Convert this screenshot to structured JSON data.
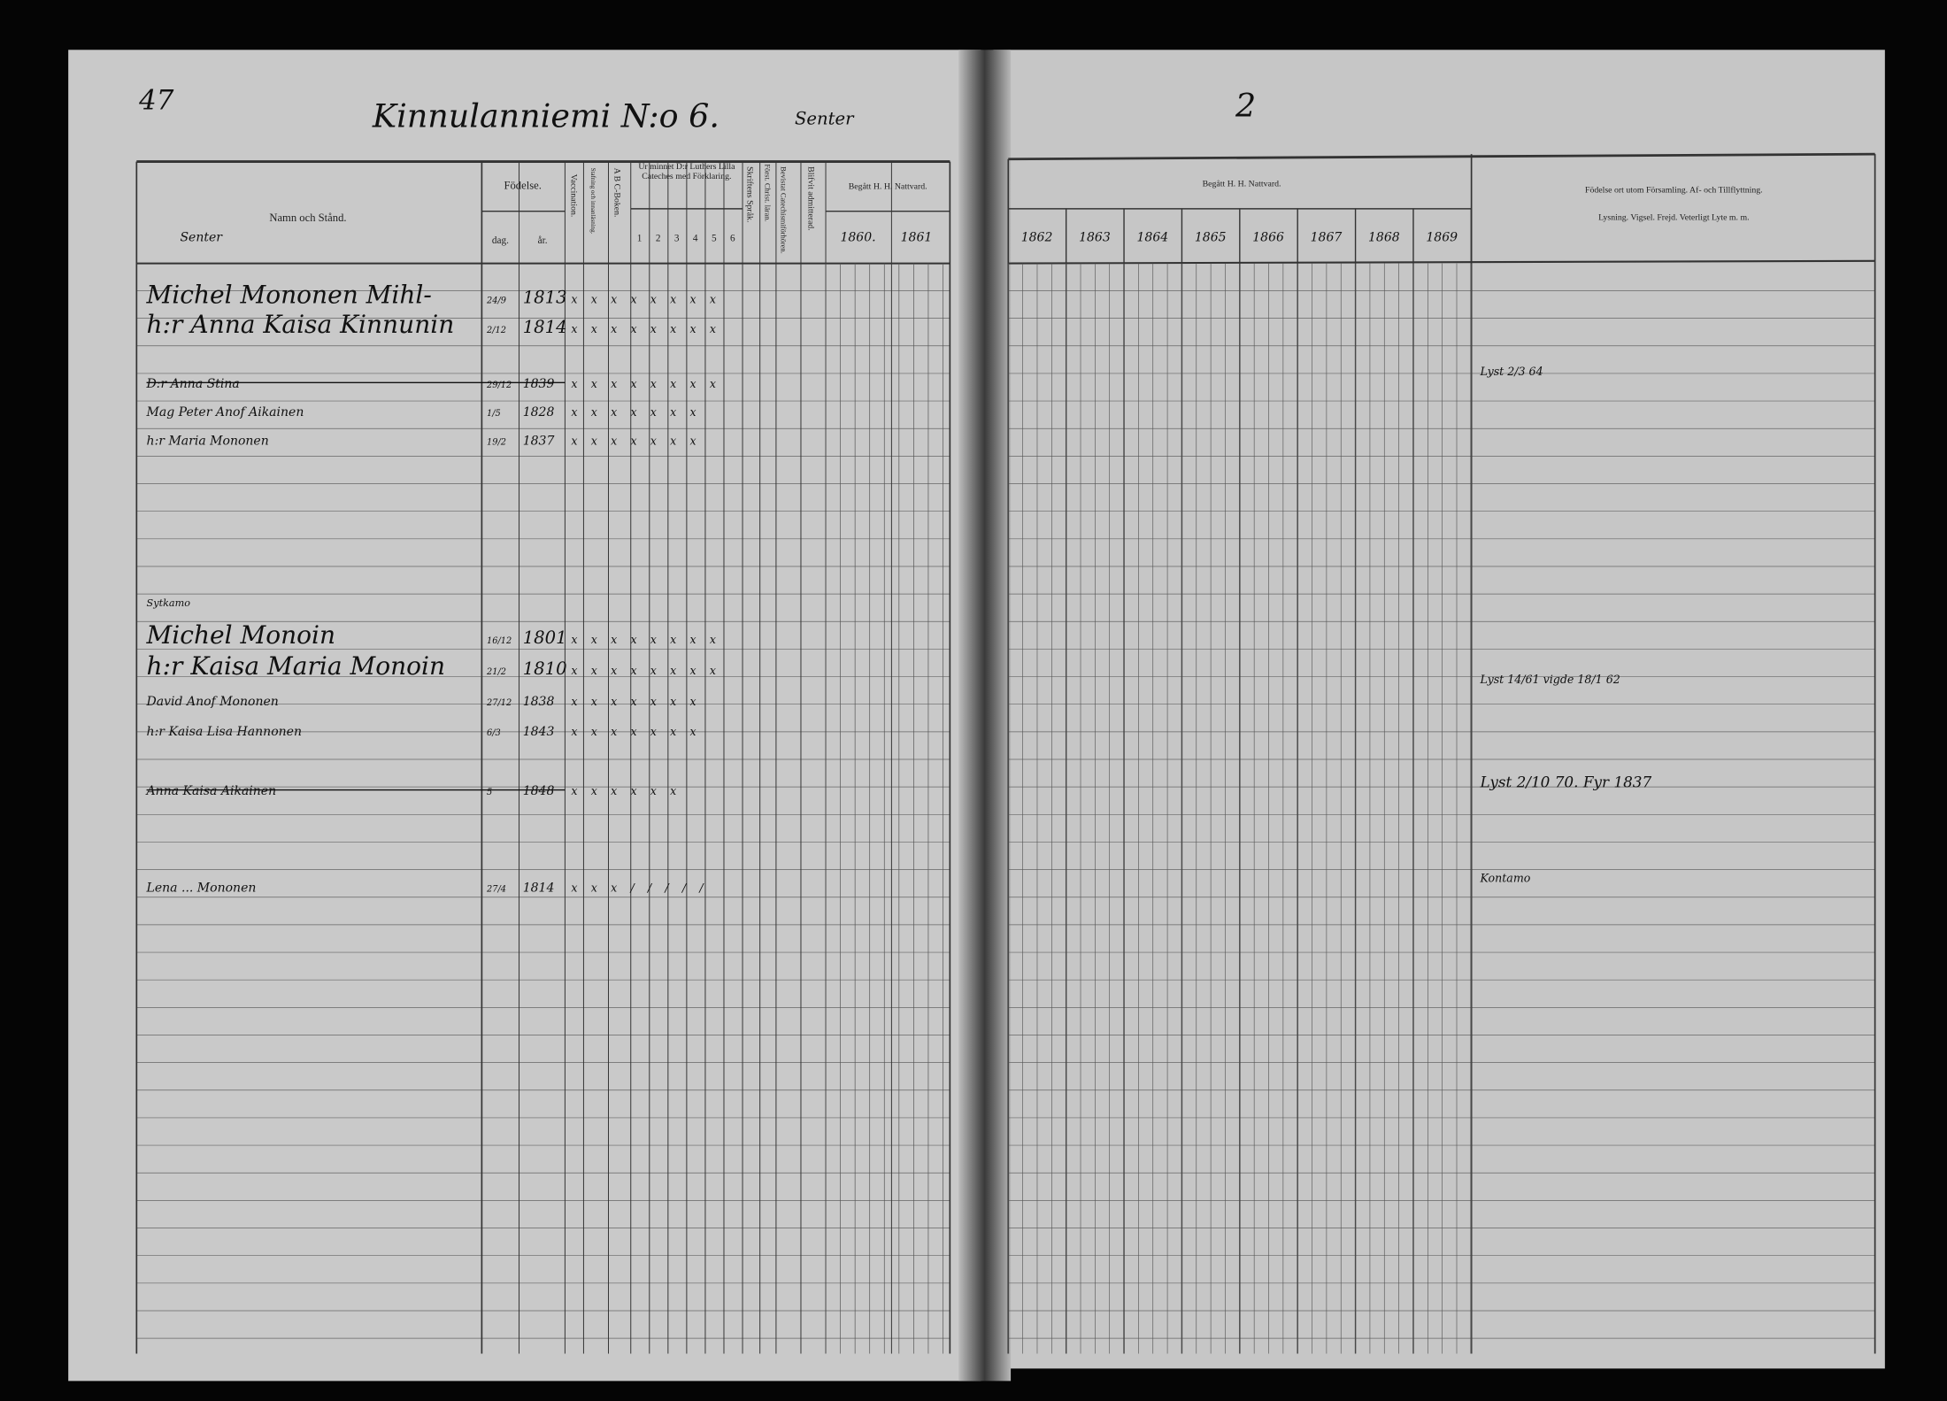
{
  "page_number": "47",
  "title": "Kinnulanniemi N:o 6.",
  "title_note": "Senter",
  "right_page_mark": "2",
  "headers": {
    "name": "Namn och Stånd.",
    "birth": "Födelse.",
    "birth_day": "dag.",
    "birth_year": "år.",
    "vaccination": "Vaccination.",
    "spelling": "Stafning och innanläsning.",
    "abc": "A B C-Boken.",
    "catechism": "Ur minnet D:r Luthers Lilla Cateches med Förklaring.",
    "catechism_cols": [
      "1",
      "2",
      "3",
      "4",
      "5",
      "6"
    ],
    "scripture": "Skriftens Språk.",
    "forst": "Först. Christ. läran.",
    "catechism_exams": "Bevistat Catechismiförhören.",
    "admitted": "Blifvit admitterad.",
    "communion": "Begått H. H. Nattvard.",
    "years_left": [
      "1860.",
      "1861"
    ],
    "years_right": [
      "1862",
      "1863",
      "1864",
      "1865",
      "1866",
      "1867",
      "1868",
      "1869"
    ],
    "remarks": "Födelse ort utom Församling. Af- och Tillflyttning.",
    "remarks2": "Lysning. Vigsel. Frejd. Veterligt Lyte m. m."
  },
  "section_label": "Senter",
  "section_label2": "Sytkamo",
  "rows": [
    {
      "name": "Michel Mononen Mihl-",
      "day": "24/9",
      "year": "1813",
      "marks": "x x x x x x x x"
    },
    {
      "name": "h:r Anna Kaisa Kinnunin",
      "day": "2/12",
      "year": "1814",
      "marks": "x x x x x x x x"
    },
    {
      "name": "D:r Anna Stina",
      "day": "29/12",
      "year": "1839",
      "marks": "x x x x x x x x"
    },
    {
      "name": "Mag Peter Anof Aikainen",
      "day": "1/5",
      "year": "1828",
      "marks": "x x x x x x x"
    },
    {
      "name": "h:r Maria Mononen",
      "day": "19/2",
      "year": "1837",
      "marks": "x x x x x x x"
    },
    {
      "name": "Michel Monoin",
      "day": "16/12",
      "year": "1801",
      "marks": "x x x x x x x x"
    },
    {
      "name": "h:r Kaisa Maria Monoin",
      "day": "21/2",
      "year": "1810",
      "marks": "x x x x x x x x"
    },
    {
      "name": "David Anof Mononen",
      "day": "27/12",
      "year": "1838",
      "marks": "x x x x x x x"
    },
    {
      "name": "h:r Kaisa Lisa Hannonen",
      "day": "6/3",
      "year": "1843",
      "marks": "x x x x x x x"
    },
    {
      "name": "Anna Kaisa Aikainen",
      "day": "5",
      "year": "1848",
      "marks": "x x x x x x"
    },
    {
      "name": "Lena ... Mononen",
      "day": "27/4",
      "year": "1814",
      "marks": "x x x / / / / /"
    }
  ],
  "remarks_entries": [
    "Lyst 2/3 64",
    "Lyst 14/61  vigde 18/1 62",
    "Lyst 2/10 70. Fyr 1837",
    "Kontamo"
  ],
  "colors": {
    "paper": "#c9c9c9",
    "ink": "#111111",
    "background": "#000000"
  }
}
